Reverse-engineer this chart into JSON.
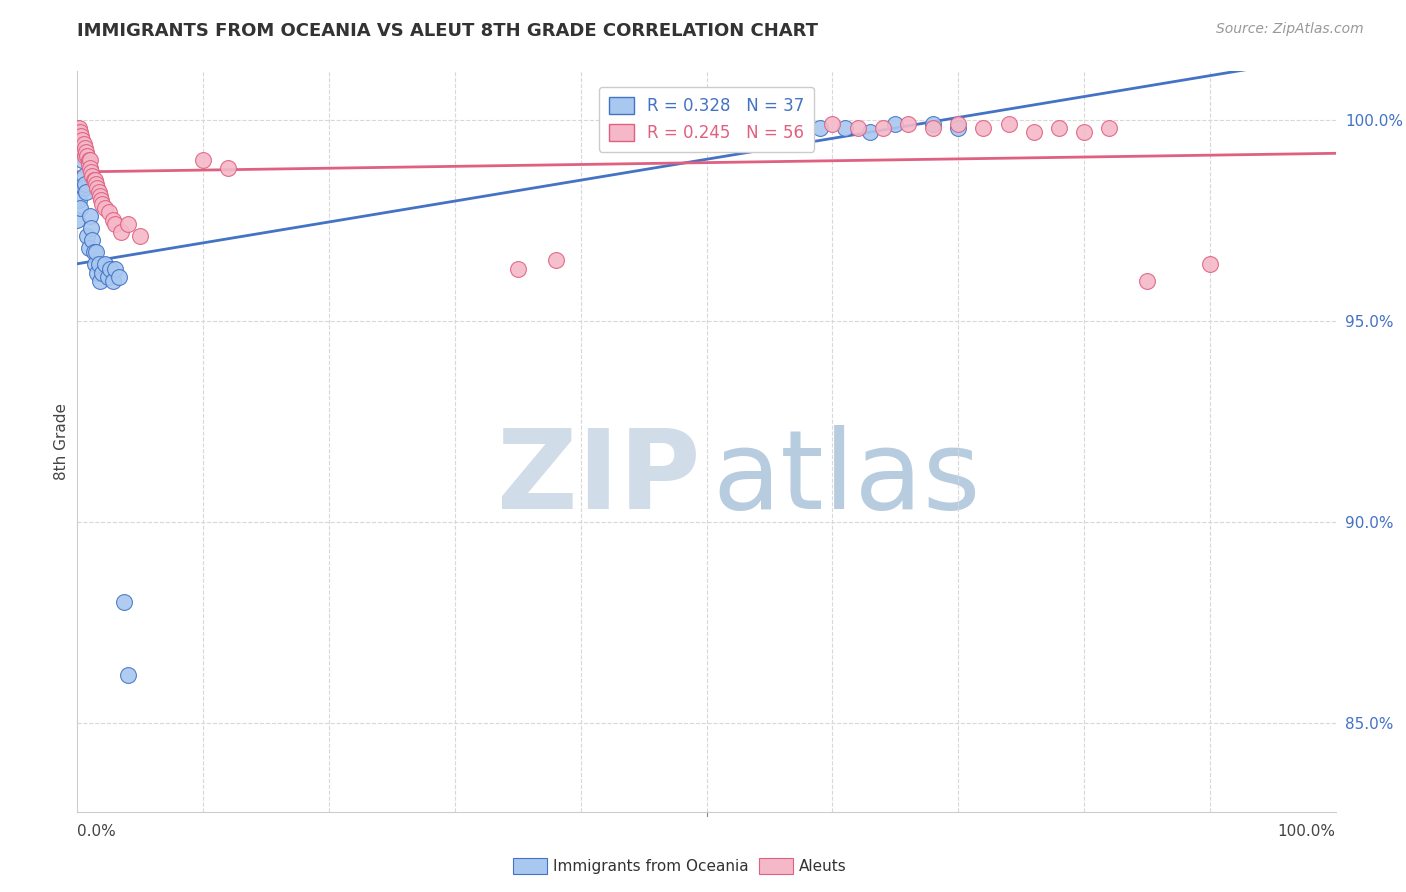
{
  "title": "IMMIGRANTS FROM OCEANIA VS ALEUT 8TH GRADE CORRELATION CHART",
  "source": "Source: ZipAtlas.com",
  "ylabel": "8th Grade",
  "ytick_values": [
    0.85,
    0.9,
    0.95,
    1.0
  ],
  "xmin": 0.0,
  "xmax": 1.0,
  "ymin": 0.828,
  "ymax": 1.012,
  "blue_R": 0.328,
  "blue_N": 37,
  "pink_R": 0.245,
  "pink_N": 56,
  "blue_color": "#a8c8f0",
  "blue_line_color": "#4472c4",
  "pink_color": "#f4b8c8",
  "pink_line_color": "#e06080",
  "blue_label": "Immigrants from Oceania",
  "pink_label": "Aleuts",
  "watermark_zip_color": "#cdd9ed",
  "watermark_atlas_color": "#b8cce4",
  "grid_color": "#d8d8d8",
  "background_color": "#ffffff"
}
